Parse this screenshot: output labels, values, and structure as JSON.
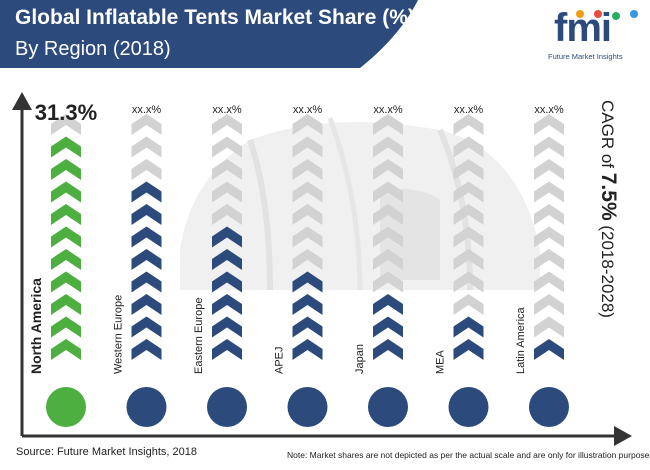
{
  "header": {
    "title_line1": "Global Inflatable Tents Market Share (%)",
    "title_line2": "By Region (2018)"
  },
  "logo": {
    "mark": "fmi",
    "subtitle": "Future Market Insights"
  },
  "chart_data": {
    "type": "bar",
    "title": "Global Inflatable Tents Market Share (%) By Region (2018)",
    "categories": [
      "North America",
      "Western Europe",
      "Eastern Europe",
      "APEJ",
      "Japan",
      "MEA",
      "Latin America"
    ],
    "value_labels": [
      "31.3%",
      "xx.x%",
      "xx.x%",
      "xx.x%",
      "xx.x%",
      "xx.x%",
      "xx.x%"
    ],
    "filled_levels": [
      10,
      8,
      6,
      4,
      3,
      2,
      1
    ],
    "total_levels": 11,
    "highlight_index": 0,
    "legend": "none",
    "grid": false
  },
  "cagr": {
    "prefix": "CAGR of ",
    "value": "7.5%",
    "suffix": " (2018-2028)"
  },
  "footer": {
    "source": "Source: Future Market Insights, 2018",
    "note": "Note: Market shares are not depicted as per the actual scale and are only for illustration purposes."
  },
  "colors": {
    "header_bg": "#2c4a7c",
    "highlight": "#4caf3f",
    "filled": "#2c4a7c",
    "empty": "#d3d2d2",
    "axis": "#333333",
    "tent": "#eeeeee"
  },
  "icons": [
    "header-banner",
    "tent-illustration",
    "axis-arrow-icon",
    "chevron-icon",
    "circle-marker-icon"
  ]
}
